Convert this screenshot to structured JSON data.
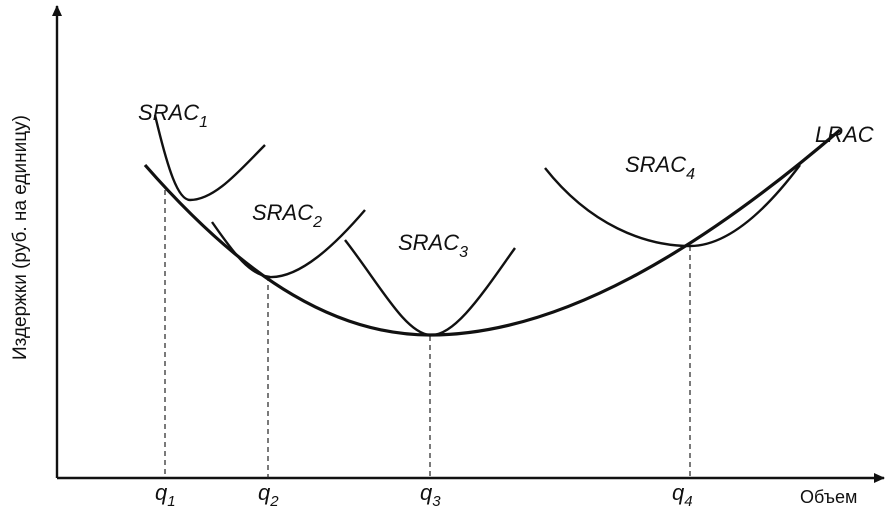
{
  "axes": {
    "y_label": "Издержки (руб. на единицу)",
    "x_label": "Объем"
  },
  "curves": [
    {
      "text": "SRAC",
      "sub": "1"
    },
    {
      "text": "SRAC",
      "sub": "2"
    },
    {
      "text": "SRAC",
      "sub": "3"
    },
    {
      "text": "SRAC",
      "sub": "4"
    },
    {
      "text": "LRAC"
    }
  ],
  "quantities": [
    {
      "text": "q",
      "sub": "1"
    },
    {
      "text": "q",
      "sub": "2"
    },
    {
      "text": "q",
      "sub": "3"
    },
    {
      "text": "q",
      "sub": "4"
    }
  ]
}
